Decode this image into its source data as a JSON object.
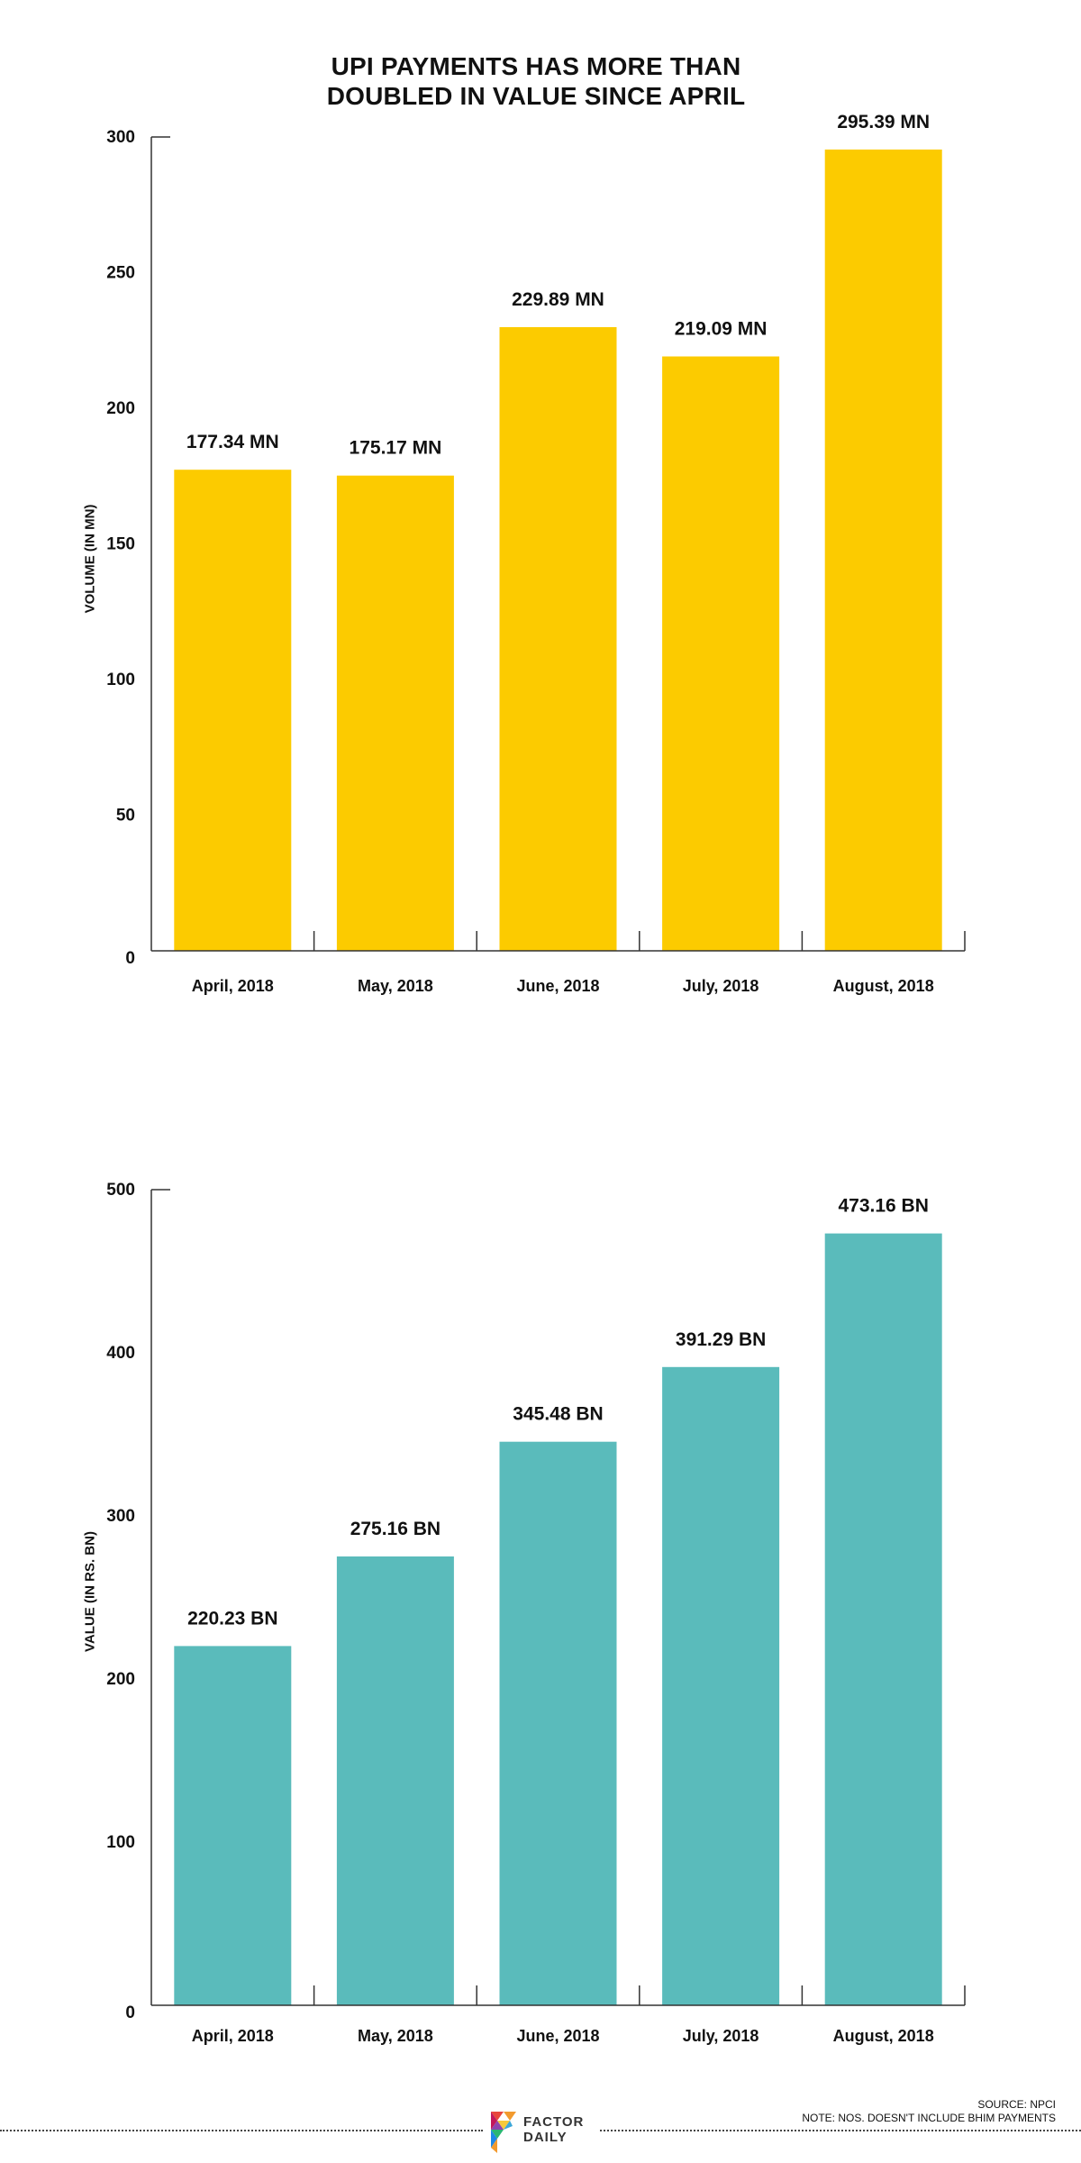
{
  "title": "UPI PAYMENTS HAS MORE THAN\nDOUBLED IN VALUE SINCE APRIL",
  "chart_data": [
    {
      "type": "bar",
      "ylabel": "VOLUME (IN MN)",
      "xlabel": "",
      "categories": [
        "April, 2018",
        "May, 2018",
        "June, 2018",
        "July, 2018",
        "August, 2018"
      ],
      "values": [
        177.34,
        175.17,
        229.89,
        219.09,
        295.39
      ],
      "data_labels": [
        "177.34 MN",
        "175.17 MN",
        "229.89 MN",
        "219.09 MN",
        "295.39 MN"
      ],
      "ylim": [
        0,
        300
      ],
      "yticks": [
        0,
        50,
        100,
        150,
        200,
        250,
        300
      ],
      "color": "#FCCB00",
      "grid": false,
      "legend": "none"
    },
    {
      "type": "bar",
      "ylabel": "VALUE (IN RS. BN)",
      "xlabel": "",
      "categories": [
        "April, 2018",
        "May, 2018",
        "June, 2018",
        "July, 2018",
        "August, 2018"
      ],
      "values": [
        220.23,
        275.16,
        345.48,
        391.29,
        473.16
      ],
      "data_labels": [
        "220.23 BN",
        "275.16 BN",
        "345.48 BN",
        "391.29 BN",
        "473.16 BN"
      ],
      "ylim": [
        0,
        500
      ],
      "yticks": [
        0,
        100,
        200,
        300,
        400,
        500
      ],
      "color": "#5ABBBB",
      "grid": false,
      "legend": "none"
    }
  ],
  "footer": {
    "logo_line1": "FACTOR",
    "logo_line2": "DAILY",
    "source": "SOURCE: NPCI",
    "note": "NOTE: NOS. DOESN'T INCLUDE BHIM PAYMENTS"
  },
  "colors": {
    "volume_bar": "#FCCB00",
    "value_bar": "#5ABBBB",
    "axis": "#333333",
    "text": "#111111"
  }
}
